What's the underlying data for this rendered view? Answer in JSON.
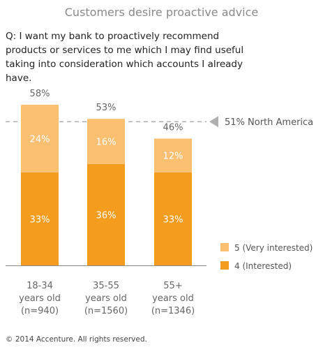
{
  "title": "Customers desire proactive advice",
  "question": "Q: I want my bank to proactively recommend products or services to me which I may find useful taking into consideration which accounts I already have.",
  "copyright": "© 2014 Accenture. All rights reserved.",
  "chart_data": {
    "type": "bar",
    "stacked": true,
    "categories": [
      [
        "18-34",
        "years old",
        "(n=940)"
      ],
      [
        "35-55",
        "years old",
        "(n=1560)"
      ],
      [
        "55+",
        "years old",
        "(n=1346)"
      ]
    ],
    "series": [
      {
        "name": "4 (Interested)",
        "color": "#f39c1d",
        "values": [
          33,
          36,
          33
        ],
        "labels": [
          "33%",
          "36%",
          "33%"
        ]
      },
      {
        "name": "5 (Very interested)",
        "color": "#fbbf72",
        "values": [
          24,
          16,
          12
        ],
        "labels": [
          "24%",
          "16%",
          "12%"
        ]
      }
    ],
    "totals": [
      "58%",
      "53%",
      "46%"
    ],
    "total_values": [
      58,
      53,
      46
    ],
    "reference_line": {
      "value": 51,
      "label": "51% North America",
      "color": "#b0b0b0"
    },
    "legend": [
      {
        "label": "5 (Very interested)",
        "color": "#fbbf72"
      },
      {
        "label": "4 (Interested)",
        "color": "#f39c1d"
      }
    ],
    "legend_position": "right",
    "ylim": [
      0,
      58
    ],
    "grid": false
  }
}
